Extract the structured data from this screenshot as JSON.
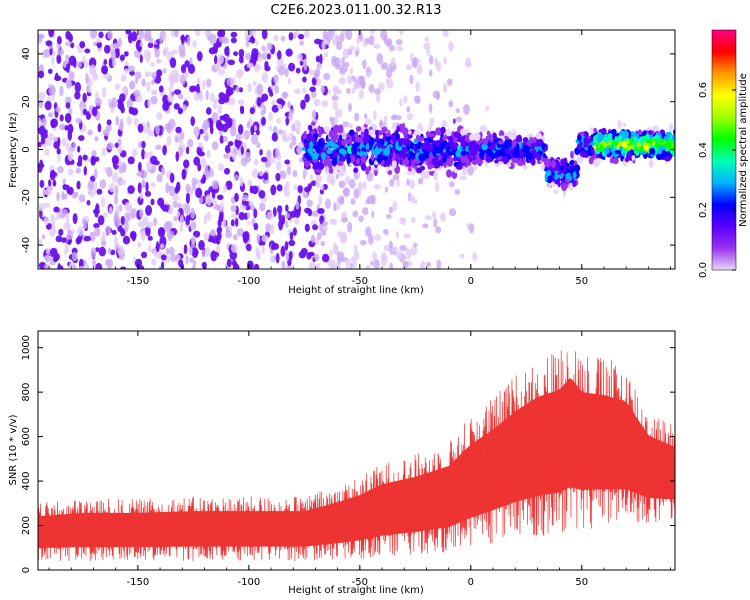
{
  "title": "C2E6.2023.011.00.32.R13",
  "chart_data": [
    {
      "type": "heatmap",
      "xlabel": "Height of straight line (km)",
      "ylabel": "Frequency (Hz)",
      "xlim": [
        -195,
        92
      ],
      "ylim": [
        -50,
        50
      ],
      "xticks": [
        -150,
        -100,
        -50,
        0,
        50
      ],
      "yticks": [
        -40,
        -20,
        0,
        20,
        40
      ],
      "colorbar": {
        "label": "Normalized spectral amplitude",
        "range": [
          0,
          0.8
        ],
        "ticks": [
          0.0,
          0.2,
          0.4,
          0.6
        ],
        "colors": [
          "#e8d6f8",
          "#9a32f0",
          "#5a00ff",
          "#0000ff",
          "#00b4ff",
          "#00ffb4",
          "#00ff00",
          "#a0ff00",
          "#ffff00",
          "#ff9a00",
          "#ff0000",
          "#ff0080"
        ]
      },
      "features": [
        {
          "region": "left noise field",
          "x_range": [
            -195,
            -75
          ],
          "freq_range": [
            -50,
            50
          ],
          "level": 0.12
        },
        {
          "region": "central signal band",
          "x_range": [
            -75,
            92
          ],
          "freq_center": 0,
          "level": 0.3
        },
        {
          "region": "dip",
          "x": 40,
          "freq_center": -10,
          "level": 0.3
        },
        {
          "region": "high amplitude segment",
          "x_range": [
            55,
            92
          ],
          "freq_center": 2,
          "level": 0.6
        }
      ]
    },
    {
      "type": "area",
      "xlabel": "Height of straight line (km)",
      "ylabel": "SNR (10 * v/v)",
      "xlim": [
        -195,
        92
      ],
      "ylim": [
        0,
        1075
      ],
      "xticks": [
        -150,
        -100,
        -50,
        0,
        50
      ],
      "yticks": [
        0,
        200,
        400,
        600,
        800,
        1000
      ],
      "color": "#ee3333",
      "series": [
        {
          "x": [
            -195,
            -175,
            -150,
            -125,
            -100,
            -75,
            -60,
            -50,
            -40,
            -25,
            -10,
            0,
            10,
            20,
            30,
            40,
            45,
            50,
            60,
            70,
            80,
            92
          ],
          "low": [
            40,
            40,
            40,
            40,
            40,
            40,
            45,
            50,
            60,
            70,
            80,
            100,
            120,
            140,
            150,
            160,
            170,
            180,
            190,
            200,
            210,
            220
          ],
          "high": [
            300,
            320,
            320,
            330,
            330,
            330,
            380,
            420,
            480,
            520,
            580,
            700,
            780,
            880,
            960,
            1000,
            1070,
            980,
            960,
            920,
            720,
            650
          ]
        }
      ]
    }
  ]
}
